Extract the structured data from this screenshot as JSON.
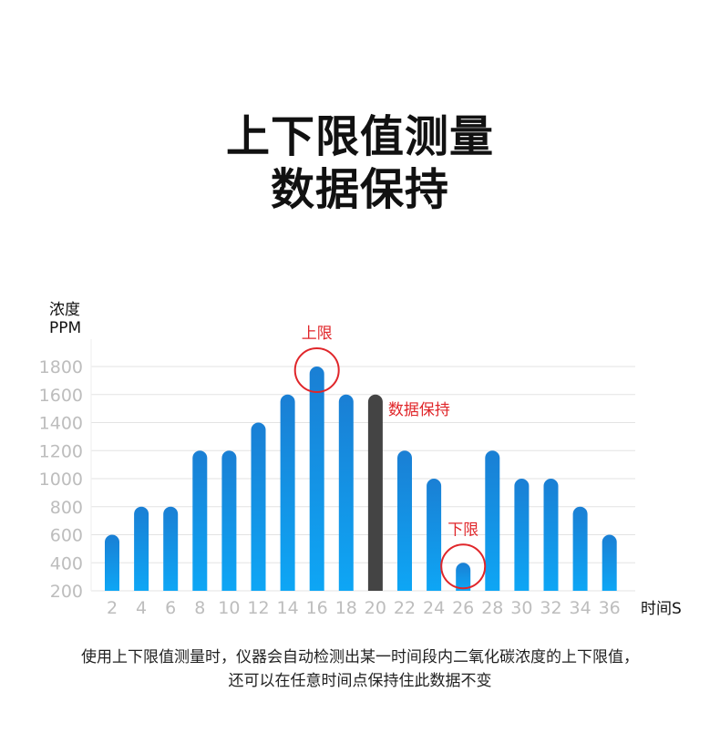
{
  "heading": {
    "line1": "上下限值测量",
    "line2": "数据保持"
  },
  "caption": {
    "line1": "使用上下限值测量时，仪器会自动检测出某一时间段内二氧化碳浓度的上下限值，",
    "line2": "还可以在任意时间点保持住此数据不变"
  },
  "chart_data": {
    "type": "bar",
    "ylabel_lines": [
      "浓度",
      "PPM"
    ],
    "xlabel": "时间S",
    "categories": [
      "2",
      "4",
      "6",
      "8",
      "10",
      "12",
      "14",
      "16",
      "18",
      "20",
      "22",
      "24",
      "26",
      "28",
      "30",
      "32",
      "34",
      "36"
    ],
    "values": [
      600,
      800,
      800,
      1200,
      1200,
      1400,
      1600,
      1800,
      1600,
      1600,
      1200,
      1000,
      400,
      1200,
      1000,
      1000,
      800,
      600
    ],
    "yticks": [
      200,
      400,
      600,
      800,
      1000,
      1200,
      1400,
      1600,
      1800
    ],
    "ylim": [
      200,
      1800
    ],
    "grid": true,
    "colors": {
      "bar_top": "#1a7fd4",
      "bar_bottom": "#0ea6f5",
      "bar_dark_top": "#0d5fb0",
      "hold_bar": "#444444",
      "annotation": "#e0262a",
      "grid": "#e3e3e3",
      "tick": "#bdbdbd"
    },
    "annotations": [
      {
        "text": "上限",
        "category": "16",
        "type": "max"
      },
      {
        "text": "数据保持",
        "category": "20",
        "type": "hold"
      },
      {
        "text": "下限",
        "category": "26",
        "type": "min"
      }
    ]
  }
}
